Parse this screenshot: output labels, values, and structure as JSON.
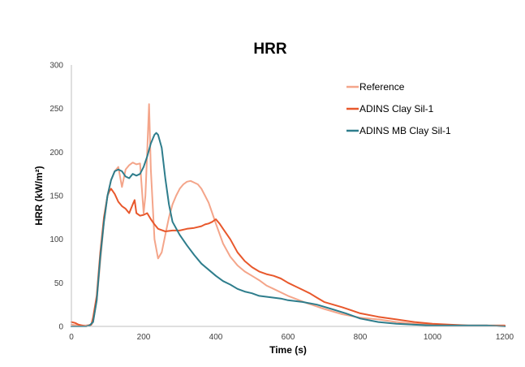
{
  "chart_data": {
    "type": "line",
    "title": "HRR",
    "xlabel": "Time (s)",
    "ylabel": "HRR (kW/m²)",
    "xlim": [
      0,
      1200
    ],
    "ylim": [
      0,
      300
    ],
    "xticks": [
      0,
      200,
      400,
      600,
      800,
      1000,
      1200
    ],
    "yticks": [
      0,
      50,
      100,
      150,
      200,
      250,
      300
    ],
    "grid": false,
    "legend_position": "top-right",
    "series": [
      {
        "name": "Reference",
        "color": "#F4A58A",
        "x": [
          0,
          20,
          40,
          55,
          60,
          70,
          80,
          90,
          100,
          110,
          120,
          130,
          140,
          150,
          160,
          170,
          180,
          190,
          200,
          205,
          210,
          215,
          220,
          230,
          240,
          250,
          260,
          270,
          280,
          290,
          300,
          310,
          320,
          330,
          340,
          350,
          360,
          370,
          380,
          390,
          400,
          420,
          440,
          460,
          480,
          500,
          520,
          540,
          560,
          600,
          650,
          700,
          750,
          800,
          850,
          900,
          950,
          1000,
          1050,
          1100,
          1150,
          1200
        ],
        "y": [
          2,
          1,
          1,
          2,
          5,
          30,
          75,
          120,
          150,
          168,
          178,
          183,
          160,
          180,
          185,
          188,
          186,
          187,
          130,
          150,
          200,
          255,
          180,
          100,
          78,
          85,
          105,
          125,
          140,
          150,
          158,
          163,
          166,
          167,
          165,
          163,
          158,
          150,
          142,
          130,
          118,
          95,
          80,
          70,
          63,
          58,
          53,
          47,
          43,
          35,
          27,
          20,
          14,
          10,
          8,
          5,
          3,
          2,
          1,
          1,
          1,
          0
        ]
      },
      {
        "name": "ADINS Clay Sil-1",
        "color": "#E8582C",
        "x": [
          0,
          10,
          20,
          30,
          40,
          55,
          60,
          70,
          80,
          90,
          100,
          105,
          110,
          120,
          130,
          140,
          150,
          160,
          170,
          175,
          180,
          190,
          200,
          210,
          220,
          230,
          240,
          260,
          280,
          300,
          320,
          340,
          360,
          370,
          380,
          390,
          400,
          410,
          420,
          440,
          460,
          480,
          500,
          520,
          540,
          560,
          580,
          600,
          620,
          640,
          660,
          680,
          700,
          750,
          800,
          850,
          900,
          950,
          1000,
          1050,
          1100,
          1150,
          1200
        ],
        "y": [
          5,
          4,
          2,
          1,
          0,
          2,
          10,
          35,
          85,
          125,
          150,
          155,
          158,
          152,
          143,
          138,
          135,
          130,
          140,
          145,
          130,
          127,
          128,
          130,
          123,
          117,
          112,
          109,
          110,
          110,
          112,
          113,
          115,
          117,
          118,
          120,
          123,
          118,
          112,
          100,
          85,
          75,
          68,
          63,
          60,
          58,
          55,
          50,
          46,
          42,
          38,
          33,
          28,
          22,
          15,
          11,
          8,
          5,
          3,
          2,
          1,
          1,
          1
        ]
      },
      {
        "name": "ADINS MB Clay Sil-1",
        "color": "#2E7D8C",
        "x": [
          0,
          20,
          40,
          50,
          60,
          70,
          80,
          90,
          100,
          110,
          120,
          130,
          140,
          150,
          160,
          170,
          180,
          190,
          200,
          210,
          220,
          230,
          235,
          240,
          250,
          260,
          270,
          280,
          300,
          320,
          340,
          360,
          380,
          400,
          420,
          440,
          460,
          480,
          500,
          520,
          540,
          560,
          580,
          600,
          640,
          680,
          720,
          760,
          800,
          850,
          900,
          950,
          1000,
          1050,
          1100,
          1150,
          1200
        ],
        "y": [
          0,
          0,
          0,
          1,
          5,
          30,
          80,
          120,
          150,
          168,
          178,
          180,
          178,
          172,
          170,
          175,
          173,
          175,
          183,
          195,
          210,
          220,
          222,
          220,
          205,
          170,
          140,
          120,
          105,
          93,
          82,
          72,
          65,
          58,
          52,
          48,
          43,
          40,
          38,
          35,
          34,
          33,
          32,
          30,
          28,
          25,
          20,
          15,
          9,
          5,
          3,
          2,
          1,
          1,
          1,
          1,
          0
        ]
      }
    ]
  }
}
